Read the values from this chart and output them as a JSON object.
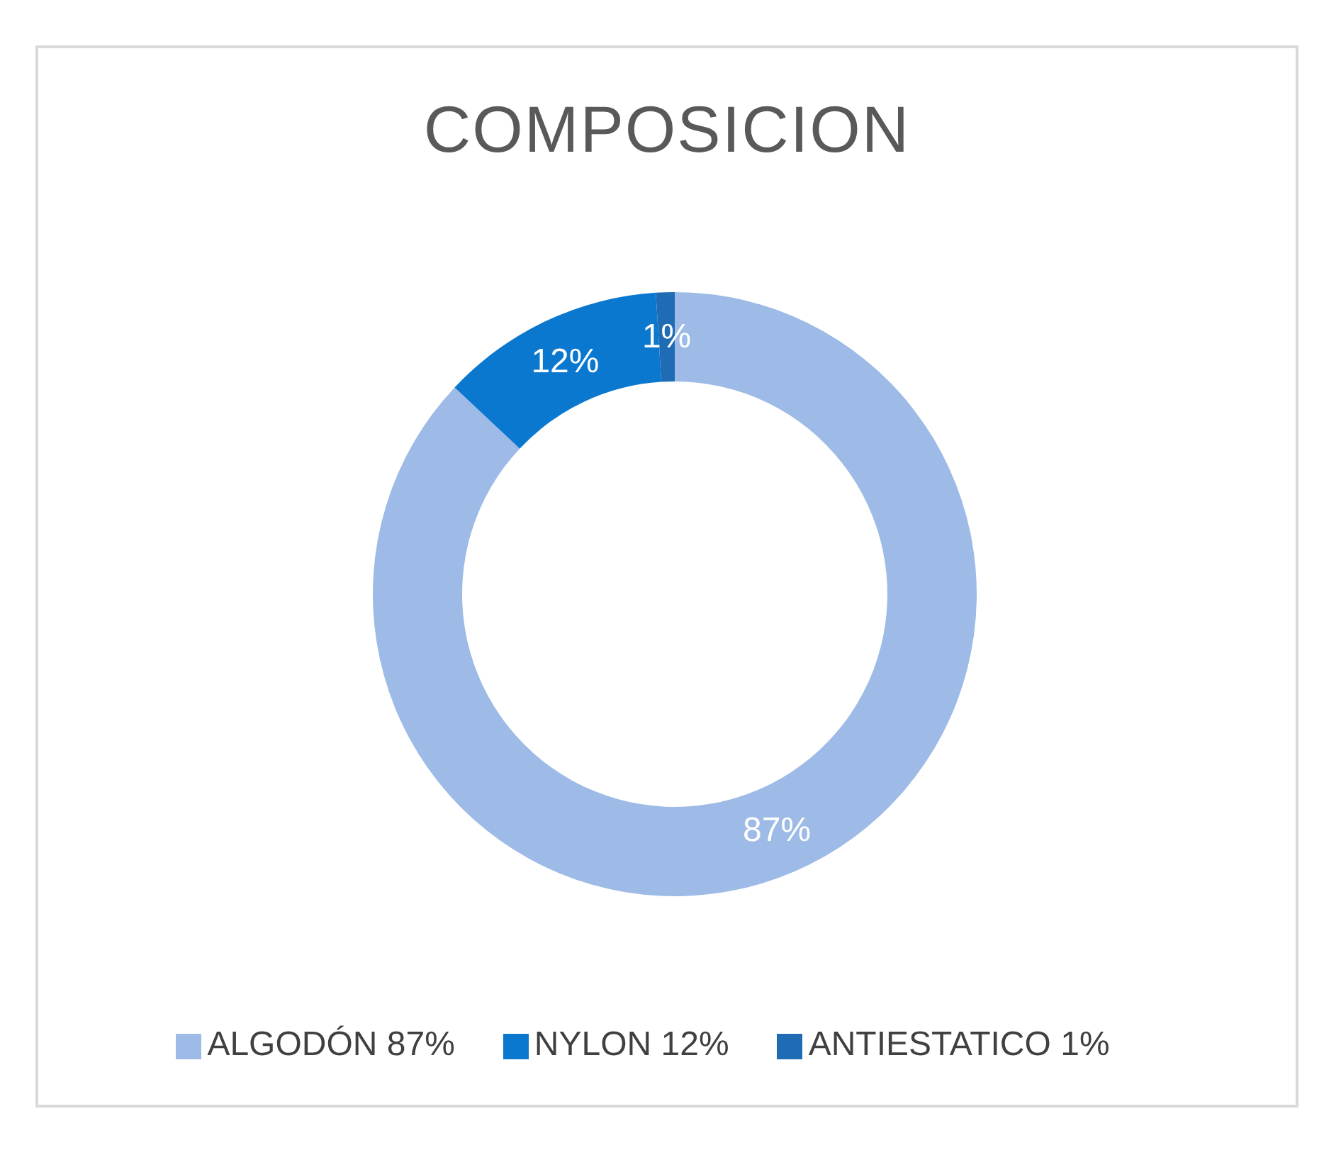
{
  "chart_data": {
    "type": "donut",
    "title": "COMPOSICION",
    "categories": [
      "ALGODÓN 87%",
      "NYLON 12%",
      "ANTIESTATICO 1%"
    ],
    "values": [
      87,
      12,
      1
    ],
    "colors": [
      "#9dbbe6",
      "#0b78d0",
      "#1f6cb4"
    ],
    "value_labels": [
      "87%",
      "12%",
      "1%"
    ],
    "legend": "bottom"
  }
}
